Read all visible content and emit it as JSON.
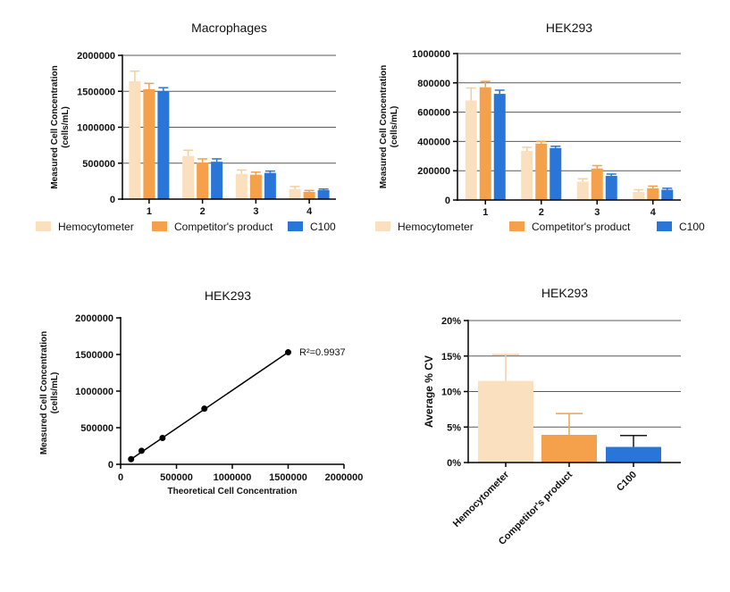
{
  "chart_data": [
    {
      "type": "bar",
      "title": "Macrophages",
      "xlabel": "",
      "ylabel": "Measured Cell Concentration\n(cells/mL)",
      "categories": [
        "1",
        "2",
        "3",
        "4"
      ],
      "ylim": [
        0,
        2000000
      ],
      "yticks": [
        "0",
        "500000",
        "1000000",
        "1500000",
        "2000000"
      ],
      "grid": true,
      "legend": "bottom",
      "series": [
        {
          "name": "Hemocytometer",
          "color": "#FBE0C0",
          "values": [
            1640000,
            600000,
            350000,
            140000
          ],
          "errors": [
            140000,
            80000,
            55000,
            35000
          ]
        },
        {
          "name": "Competitor's product",
          "color": "#F5A04A",
          "values": [
            1530000,
            510000,
            340000,
            100000
          ],
          "errors": [
            80000,
            50000,
            35000,
            20000
          ]
        },
        {
          "name": "C100",
          "color": "#2A75D8",
          "values": [
            1500000,
            520000,
            365000,
            125000
          ],
          "errors": [
            50000,
            40000,
            25000,
            15000
          ]
        }
      ]
    },
    {
      "type": "bar",
      "title": "HEK293",
      "xlabel": "",
      "ylabel": "Measured Cell Concentration\n(cells/mL)",
      "categories": [
        "1",
        "2",
        "3",
        "4"
      ],
      "ylim": [
        0,
        1000000
      ],
      "yticks": [
        "0",
        "200000",
        "400000",
        "600000",
        "800000",
        "1000000"
      ],
      "grid": true,
      "legend": "bottom",
      "series": [
        {
          "name": "Hemocytometer",
          "color": "#FBE0C0",
          "values": [
            680000,
            335000,
            125000,
            55000
          ],
          "errors": [
            85000,
            25000,
            20000,
            15000
          ]
        },
        {
          "name": "Competitor's product",
          "color": "#F5A04A",
          "values": [
            770000,
            385000,
            215000,
            80000
          ],
          "errors": [
            40000,
            15000,
            20000,
            15000
          ]
        },
        {
          "name": "C100",
          "color": "#2A75D8",
          "values": [
            725000,
            355000,
            165000,
            70000
          ],
          "errors": [
            25000,
            12000,
            12000,
            10000
          ]
        }
      ]
    },
    {
      "type": "scatter",
      "title": "HEK293",
      "xlabel": "Theoretical Cell Concentration",
      "ylabel": "Measured Cell Concentration\n(cells/mL)",
      "xlim": [
        0,
        2000000
      ],
      "ylim": [
        0,
        2000000
      ],
      "xticks": [
        "0",
        "500000",
        "1000000",
        "1500000",
        "2000000"
      ],
      "yticks": [
        "0",
        "500000",
        "1000000",
        "1500000",
        "2000000"
      ],
      "grid": false,
      "annotation": "R²=0.9937",
      "points": [
        {
          "x": 93750,
          "y": 70000
        },
        {
          "x": 187500,
          "y": 185000
        },
        {
          "x": 375000,
          "y": 360000
        },
        {
          "x": 750000,
          "y": 760000
        },
        {
          "x": 1500000,
          "y": 1530000
        }
      ]
    },
    {
      "type": "bar",
      "title": "HEK293",
      "xlabel": "",
      "ylabel": "Average % CV",
      "categories": [
        "Hemocytometer",
        "Competitor's product",
        "C100"
      ],
      "ylim": [
        0,
        20
      ],
      "yticks": [
        "0%",
        "5%",
        "10%",
        "15%",
        "20%"
      ],
      "grid": true,
      "values": [
        11.5,
        3.9,
        2.2
      ],
      "errors": [
        3.7,
        3.0,
        1.6
      ],
      "colors": [
        "#FBE0C0",
        "#F5A04A",
        "#2A75D8"
      ],
      "errorColors": [
        "#F5CFA0",
        "#F5A04A",
        "#1a1a1a"
      ]
    }
  ]
}
